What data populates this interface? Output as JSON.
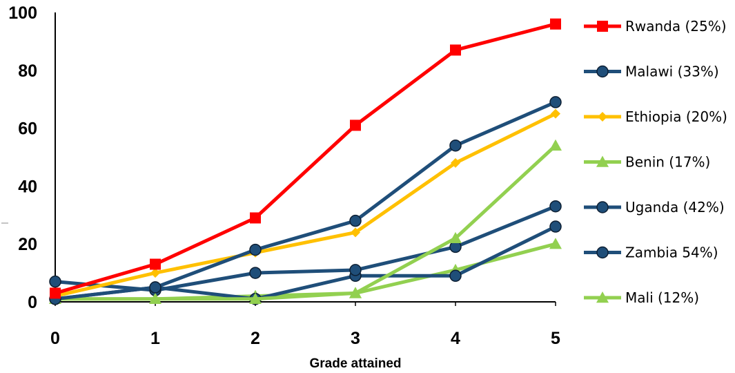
{
  "chart_data": {
    "type": "line",
    "title": "",
    "xlabel": "Grade attained",
    "ylabel": "",
    "x": [
      0,
      1,
      2,
      3,
      4,
      5
    ],
    "xlim": [
      0,
      5
    ],
    "ylim": [
      0,
      100
    ],
    "yticks": [
      0,
      20,
      40,
      60,
      80,
      100
    ],
    "grid": false,
    "legend_position": "right",
    "series": [
      {
        "name": "Rwanda (25%)",
        "color": "#ff0000",
        "marker": "square",
        "values": [
          3,
          13,
          29,
          61,
          87,
          96
        ]
      },
      {
        "name": "Malawi (33%)",
        "color": "#1f4e79",
        "marker": "circle",
        "values": [
          1,
          5,
          18,
          28,
          54,
          69
        ]
      },
      {
        "name": "Ethiopia (20%)",
        "color": "#ffc000",
        "marker": "diamond",
        "values": [
          2,
          10,
          17,
          24,
          48,
          65
        ]
      },
      {
        "name": "Benin (17%)",
        "color": "#92d050",
        "marker": "triangle",
        "values": [
          1,
          1,
          1,
          3,
          22,
          54
        ]
      },
      {
        "name": "Uganda (42%)",
        "color": "#1f4e79",
        "marker": "circle",
        "values": [
          7,
          4,
          10,
          11,
          19,
          33
        ]
      },
      {
        "name": "Zambia 54%)",
        "color": "#1f4e79",
        "marker": "circle",
        "values": [
          1,
          5,
          1,
          9,
          9,
          26
        ]
      },
      {
        "name": "Mali (12%)",
        "color": "#92d050",
        "marker": "triangle",
        "values": [
          1,
          1,
          2,
          3,
          11,
          20
        ]
      }
    ]
  }
}
